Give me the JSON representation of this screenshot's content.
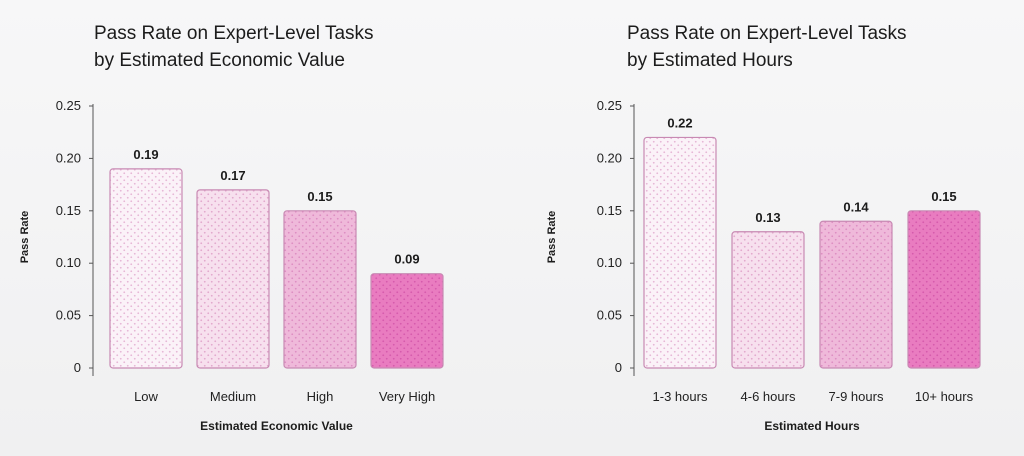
{
  "chart_data": [
    {
      "type": "bar",
      "title_lines": [
        "Pass Rate on Expert-Level Tasks",
        "by Estimated Economic Value"
      ],
      "categories": [
        "Low",
        "Medium",
        "High",
        "Very High"
      ],
      "values": [
        0.19,
        0.17,
        0.15,
        0.09
      ],
      "value_labels": [
        "0.19",
        "0.17",
        "0.15",
        "0.09"
      ],
      "xlabel": "Estimated Economic Value",
      "ylabel": "Pass Rate",
      "ylim": [
        0,
        0.25
      ],
      "yticks": [
        "0",
        "0.05",
        "0.10",
        "0.15",
        "0.20",
        "0.25"
      ],
      "grid": false,
      "bar_colors": [
        "#fbf2f8",
        "#f7e0ee",
        "#efb9da",
        "#e97cc0"
      ],
      "dot_colors": [
        "#e6b6d6",
        "#e2a8cd",
        "#dd8dc2",
        "#d65aac"
      ]
    },
    {
      "type": "bar",
      "title_lines": [
        "Pass Rate on Expert-Level Tasks",
        "by Estimated Hours"
      ],
      "categories": [
        "1-3 hours",
        "4-6 hours",
        "7-9 hours",
        "10+ hours"
      ],
      "values": [
        0.22,
        0.13,
        0.14,
        0.15
      ],
      "value_labels": [
        "0.22",
        "0.13",
        "0.14",
        "0.15"
      ],
      "xlabel": "Estimated Hours",
      "ylabel": "Pass Rate",
      "ylim": [
        0,
        0.25
      ],
      "yticks": [
        "0",
        "0.05",
        "0.10",
        "0.15",
        "0.20",
        "0.25"
      ],
      "grid": false,
      "bar_colors": [
        "#fbf2f8",
        "#f7e0ee",
        "#efb9da",
        "#e97cc0"
      ],
      "dot_colors": [
        "#e6b6d6",
        "#e2a8cd",
        "#dd8dc2",
        "#d65aac"
      ]
    }
  ]
}
